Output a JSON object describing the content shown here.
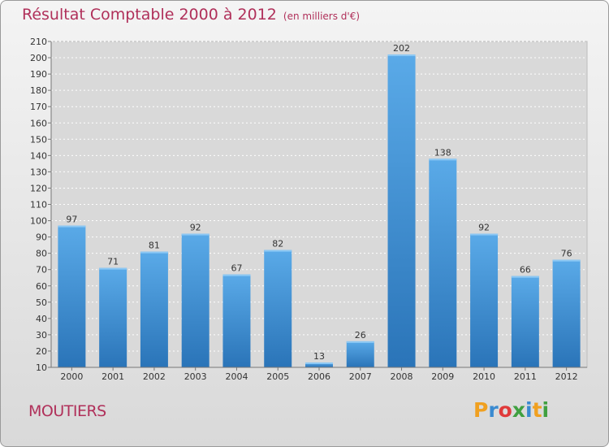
{
  "chart_data": {
    "type": "bar",
    "title": "Résultat Comptable 2000 à 2012",
    "subtitle": "(en milliers d'€)",
    "categories": [
      "2000",
      "2001",
      "2002",
      "2003",
      "2004",
      "2005",
      "2006",
      "2007",
      "2008",
      "2009",
      "2010",
      "2011",
      "2012"
    ],
    "values": [
      97,
      71,
      81,
      92,
      67,
      82,
      13,
      26,
      202,
      138,
      92,
      66,
      76
    ],
    "ylim": [
      10,
      210
    ],
    "yticks": [
      10,
      20,
      30,
      40,
      50,
      60,
      70,
      80,
      90,
      100,
      110,
      120,
      130,
      140,
      150,
      160,
      170,
      180,
      190,
      200,
      210
    ],
    "grid": true,
    "xlabel": "",
    "ylabel": ""
  },
  "place_name": "MOUTIERS",
  "logo": {
    "letters": [
      "P",
      "r",
      "o",
      "x",
      "i",
      "t",
      "i"
    ],
    "colors": [
      "#f0a020",
      "#3a8ad0",
      "#e03a3a",
      "#40a040",
      "#3a8ad0",
      "#f0a020",
      "#40a040"
    ]
  },
  "colors": {
    "bar_top": "#5aaae8",
    "bar_bottom": "#2a74b8",
    "title": "#b0305a"
  }
}
